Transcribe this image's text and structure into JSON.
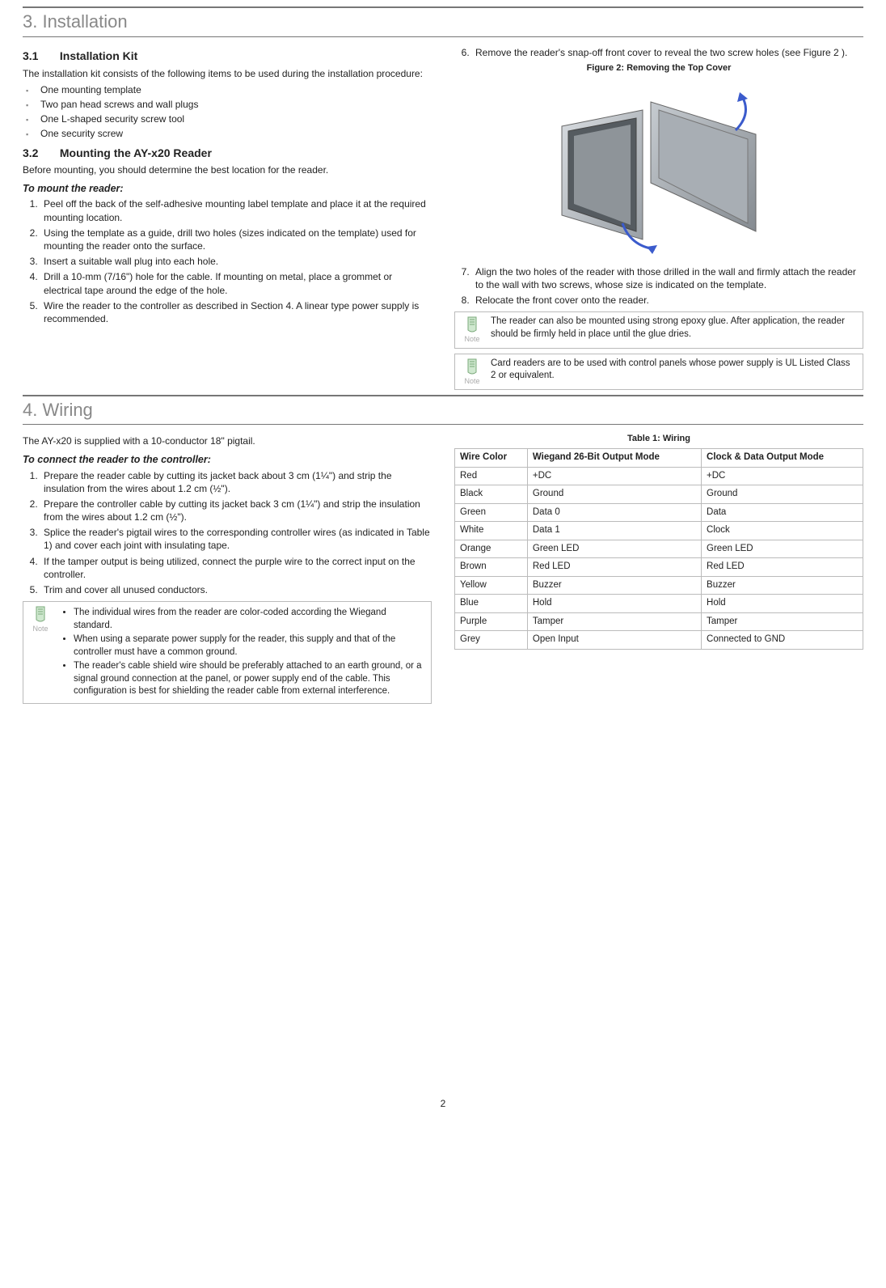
{
  "page_number": "2",
  "sec3": {
    "header": "3.   Installation",
    "s31": {
      "title_num": "3.1",
      "title": "Installation Kit",
      "intro": "The installation kit consists of the following items to be used during the installation procedure:",
      "items": [
        "One mounting template",
        "Two pan head screws and wall plugs",
        "One L-shaped security screw tool",
        "One security screw"
      ]
    },
    "s32": {
      "title_num": "3.2",
      "title": "Mounting the AY-x20 Reader",
      "intro": "Before mounting, you should determine the best location for the reader.",
      "subhead": "To mount the reader:",
      "steps": [
        "Peel off the back of the self-adhesive mounting label template and place it at the required mounting location.",
        "Using the template as a guide, drill two holes (sizes indicated on the template) used for mounting the reader onto the surface.",
        "Insert a suitable wall plug into each hole.",
        "Drill a 10-mm (7/16\") hole for the cable. If mounting on metal, place a grommet or electrical tape around the edge of the hole.",
        "Wire the reader to the controller as described in Section 4. A linear type power supply is recommended.",
        "Remove the reader's snap-off front cover to reveal the two screw holes (see Figure 2 ).",
        "Align the two holes of the reader with those drilled in the wall and firmly attach the reader to the wall with two screws, whose size is indicated on the template.",
        "Relocate the front cover onto the reader."
      ],
      "fig_caption": "Figure 2: Removing the Top Cover",
      "note1": "The reader can also be mounted using strong epoxy glue. After application, the reader should be firmly held in place until the glue dries.",
      "note2": "Card readers are to be used with control panels whose power supply is UL Listed Class 2 or equivalent.",
      "note_label": "Note"
    }
  },
  "sec4": {
    "header": "4.   Wiring",
    "intro": "The AY-x20 is supplied with a 10-conductor 18\" pigtail.",
    "subhead": "To connect the reader to the controller:",
    "steps": [
      "Prepare the reader cable by cutting its jacket back about 3 cm (1¼\") and strip the insulation from the wires about 1.2 cm (½\").",
      "Prepare the controller cable by cutting its jacket back 3 cm (1¼\") and strip the insulation from the wires about 1.2 cm (½\").",
      "Splice the reader's pigtail wires to the corresponding controller wires (as indicated in Table 1) and cover each joint with insulating tape.",
      "If the tamper output is being utilized, connect the purple wire to the correct input on the controller.",
      "Trim and cover all unused conductors."
    ],
    "note_bullets": [
      "The individual wires from the reader are color-coded according the Wiegand standard.",
      "When using a separate power supply for the reader, this supply and that of the controller must have a common ground.",
      "The reader's cable shield wire should be preferably attached to an earth ground, or a signal ground connection at the panel, or power supply end of the cable. This configuration is best for shielding the reader cable from external interference."
    ],
    "note_label": "Note",
    "table": {
      "caption": "Table 1: Wiring",
      "headers": [
        "Wire Color",
        "Wiegand 26-Bit Output Mode",
        "Clock & Data Output Mode"
      ],
      "rows": [
        [
          "Red",
          "+DC",
          "+DC"
        ],
        [
          "Black",
          "Ground",
          "Ground"
        ],
        [
          "Green",
          "Data 0",
          "Data"
        ],
        [
          "White",
          "Data 1",
          "Clock"
        ],
        [
          "Orange",
          "Green LED",
          "Green LED"
        ],
        [
          "Brown",
          "Red LED",
          "Red LED"
        ],
        [
          "Yellow",
          "Buzzer",
          "Buzzer"
        ],
        [
          "Blue",
          "Hold",
          "Hold"
        ],
        [
          "Purple",
          "Tamper",
          "Tamper"
        ],
        [
          "Grey",
          "Open Input",
          "Connected to GND"
        ]
      ]
    }
  }
}
